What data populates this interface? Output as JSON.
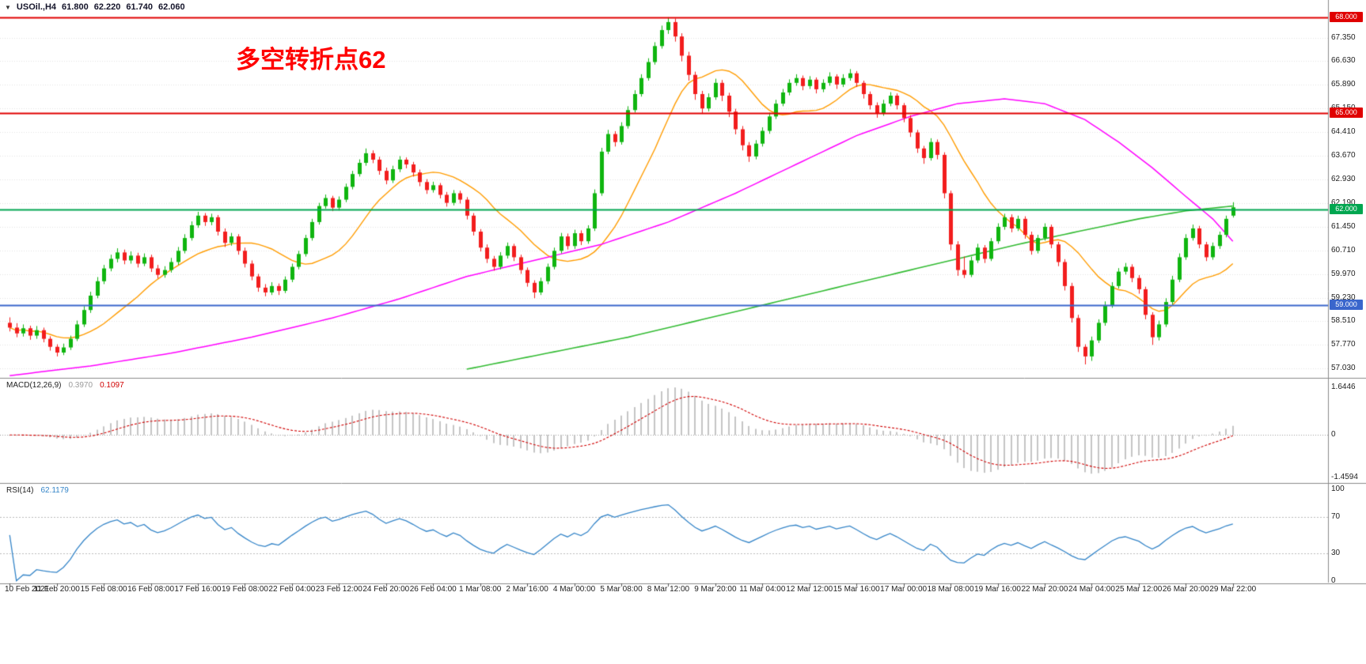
{
  "header": {
    "symbol": "USOil.,H4",
    "open": "61.800",
    "high": "62.220",
    "low": "61.740",
    "close": "62.060"
  },
  "annotation": {
    "text": "多空转折点62",
    "color": "#ff0000"
  },
  "chart_data": {
    "type": "candlestick",
    "title": "USOil H4 chart with MACD and RSI",
    "ylim": [
      56.73,
      68.54
    ],
    "price_axis_ticks": [
      "67.350",
      "66.630",
      "65.890",
      "65.150",
      "64.410",
      "63.670",
      "62.930",
      "62.190",
      "61.450",
      "60.710",
      "59.970",
      "59.230",
      "58.510",
      "57.770",
      "57.030"
    ],
    "hlines": [
      {
        "value": 68.0,
        "label": "68.000",
        "color": "#e00000"
      },
      {
        "value": 65.0,
        "label": "65.000",
        "color": "#e00000"
      },
      {
        "value": 62.0,
        "label": "62.000",
        "color": "#00a650"
      },
      {
        "value": 59.0,
        "label": "59.000",
        "color": "#3a66cc"
      }
    ],
    "candles": [
      [
        58.45,
        58.62,
        58.18,
        58.3
      ],
      [
        58.3,
        58.44,
        58.0,
        58.12
      ],
      [
        58.12,
        58.4,
        58.02,
        58.28
      ],
      [
        58.28,
        58.36,
        57.92,
        58.05
      ],
      [
        58.05,
        58.35,
        57.95,
        58.22
      ],
      [
        58.22,
        58.3,
        57.84,
        57.95
      ],
      [
        57.95,
        58.03,
        57.58,
        57.7
      ],
      [
        57.7,
        57.78,
        57.4,
        57.52
      ],
      [
        57.52,
        57.8,
        57.44,
        57.68
      ],
      [
        57.68,
        58.05,
        57.6,
        57.95
      ],
      [
        57.95,
        58.52,
        57.88,
        58.4
      ],
      [
        58.4,
        58.97,
        58.32,
        58.85
      ],
      [
        58.85,
        59.42,
        58.76,
        59.3
      ],
      [
        59.3,
        59.88,
        59.22,
        59.75
      ],
      [
        59.75,
        60.26,
        59.66,
        60.15
      ],
      [
        60.15,
        60.58,
        60.06,
        60.45
      ],
      [
        60.45,
        60.78,
        60.34,
        60.65
      ],
      [
        60.65,
        60.74,
        60.28,
        60.4
      ],
      [
        60.4,
        60.68,
        60.3,
        60.55
      ],
      [
        60.55,
        60.64,
        60.18,
        60.3
      ],
      [
        60.3,
        60.62,
        60.22,
        60.5
      ],
      [
        60.5,
        60.58,
        60.04,
        60.15
      ],
      [
        60.15,
        60.26,
        59.84,
        59.95
      ],
      [
        59.95,
        60.22,
        59.86,
        60.1
      ],
      [
        60.1,
        60.48,
        60.02,
        60.35
      ],
      [
        60.35,
        60.82,
        60.26,
        60.7
      ],
      [
        60.7,
        61.22,
        60.62,
        61.1
      ],
      [
        61.1,
        61.62,
        61.02,
        61.5
      ],
      [
        61.5,
        61.92,
        61.42,
        61.8
      ],
      [
        61.8,
        61.88,
        61.48,
        61.6
      ],
      [
        61.6,
        61.86,
        61.5,
        61.75
      ],
      [
        61.75,
        61.82,
        61.18,
        61.3
      ],
      [
        61.3,
        61.4,
        60.82,
        60.95
      ],
      [
        60.95,
        61.26,
        60.86,
        61.15
      ],
      [
        61.15,
        61.22,
        60.58,
        60.7
      ],
      [
        60.7,
        60.8,
        60.18,
        60.3
      ],
      [
        60.3,
        60.4,
        59.78,
        59.9
      ],
      [
        59.9,
        59.98,
        59.42,
        59.55
      ],
      [
        59.55,
        59.66,
        59.28,
        59.4
      ],
      [
        59.4,
        59.72,
        59.32,
        59.6
      ],
      [
        59.6,
        59.68,
        59.32,
        59.45
      ],
      [
        59.45,
        59.9,
        59.38,
        59.8
      ],
      [
        59.8,
        60.3,
        59.72,
        60.2
      ],
      [
        60.2,
        60.7,
        60.12,
        60.6
      ],
      [
        60.6,
        61.2,
        60.52,
        61.1
      ],
      [
        61.1,
        61.7,
        61.02,
        61.6
      ],
      [
        61.6,
        62.2,
        61.52,
        62.1
      ],
      [
        62.1,
        62.46,
        62.02,
        62.35
      ],
      [
        62.35,
        62.42,
        61.94,
        62.05
      ],
      [
        62.05,
        62.4,
        61.96,
        62.3
      ],
      [
        62.3,
        62.8,
        62.22,
        62.7
      ],
      [
        62.7,
        63.2,
        62.62,
        63.1
      ],
      [
        63.1,
        63.56,
        63.02,
        63.45
      ],
      [
        63.45,
        63.9,
        63.36,
        63.75
      ],
      [
        63.75,
        63.84,
        63.44,
        63.55
      ],
      [
        63.55,
        63.64,
        63.08,
        63.2
      ],
      [
        63.2,
        63.3,
        62.78,
        62.9
      ],
      [
        62.9,
        63.36,
        62.82,
        63.25
      ],
      [
        63.25,
        63.66,
        63.16,
        63.55
      ],
      [
        63.55,
        63.62,
        63.28,
        63.4
      ],
      [
        63.4,
        63.48,
        63.02,
        63.15
      ],
      [
        63.15,
        63.24,
        62.72,
        62.85
      ],
      [
        62.85,
        62.94,
        62.48,
        62.6
      ],
      [
        62.6,
        62.86,
        62.52,
        62.75
      ],
      [
        62.75,
        62.82,
        62.34,
        62.45
      ],
      [
        62.45,
        62.54,
        62.08,
        62.2
      ],
      [
        62.2,
        62.6,
        62.12,
        62.5
      ],
      [
        62.5,
        62.58,
        62.18,
        62.3
      ],
      [
        62.3,
        62.38,
        61.68,
        61.8
      ],
      [
        61.8,
        61.88,
        61.18,
        61.3
      ],
      [
        61.3,
        61.38,
        60.68,
        60.8
      ],
      [
        60.8,
        60.9,
        60.32,
        60.45
      ],
      [
        60.45,
        60.54,
        60.08,
        60.2
      ],
      [
        60.2,
        60.66,
        60.12,
        60.55
      ],
      [
        60.55,
        60.96,
        60.46,
        60.85
      ],
      [
        60.85,
        60.92,
        60.38,
        60.5
      ],
      [
        60.5,
        60.58,
        59.98,
        60.1
      ],
      [
        60.1,
        60.18,
        59.58,
        59.7
      ],
      [
        59.7,
        59.78,
        59.22,
        59.4
      ],
      [
        59.4,
        59.86,
        59.32,
        59.75
      ],
      [
        59.75,
        60.3,
        59.66,
        60.2
      ],
      [
        60.2,
        60.8,
        60.12,
        60.7
      ],
      [
        60.7,
        61.26,
        60.62,
        61.15
      ],
      [
        61.15,
        61.24,
        60.74,
        60.85
      ],
      [
        60.85,
        61.36,
        60.76,
        61.25
      ],
      [
        61.25,
        61.34,
        60.88,
        61.0
      ],
      [
        61.0,
        61.5,
        60.92,
        61.4
      ],
      [
        61.4,
        62.62,
        61.32,
        62.5
      ],
      [
        62.5,
        63.92,
        62.42,
        63.8
      ],
      [
        63.8,
        64.48,
        63.72,
        64.35
      ],
      [
        64.35,
        64.44,
        63.96,
        64.1
      ],
      [
        64.1,
        64.72,
        64.02,
        64.6
      ],
      [
        64.6,
        65.22,
        64.52,
        65.1
      ],
      [
        65.1,
        65.72,
        65.02,
        65.6
      ],
      [
        65.6,
        66.22,
        65.52,
        66.1
      ],
      [
        66.1,
        66.72,
        66.02,
        66.6
      ],
      [
        66.6,
        67.22,
        66.52,
        67.1
      ],
      [
        67.1,
        67.74,
        67.02,
        67.6
      ],
      [
        67.6,
        68.0,
        67.48,
        67.85
      ],
      [
        67.85,
        67.96,
        67.24,
        67.4
      ],
      [
        67.4,
        67.5,
        66.62,
        66.8
      ],
      [
        66.8,
        66.92,
        66.02,
        66.2
      ],
      [
        66.2,
        66.3,
        65.42,
        65.6
      ],
      [
        65.6,
        65.7,
        64.98,
        65.15
      ],
      [
        65.15,
        65.62,
        65.06,
        65.5
      ],
      [
        65.5,
        66.08,
        65.42,
        65.95
      ],
      [
        65.95,
        66.04,
        65.38,
        65.55
      ],
      [
        65.55,
        65.64,
        64.88,
        65.05
      ],
      [
        65.05,
        65.14,
        64.34,
        64.5
      ],
      [
        64.5,
        64.6,
        63.84,
        64.0
      ],
      [
        64.0,
        64.1,
        63.48,
        63.65
      ],
      [
        63.65,
        64.16,
        63.56,
        64.05
      ],
      [
        64.05,
        64.56,
        63.96,
        64.45
      ],
      [
        64.45,
        65.02,
        64.36,
        64.9
      ],
      [
        64.9,
        65.42,
        64.82,
        65.3
      ],
      [
        65.3,
        65.76,
        65.22,
        65.65
      ],
      [
        65.65,
        66.06,
        65.56,
        65.95
      ],
      [
        65.95,
        66.22,
        65.86,
        66.1
      ],
      [
        66.1,
        66.18,
        65.72,
        65.85
      ],
      [
        65.85,
        66.16,
        65.76,
        66.05
      ],
      [
        66.05,
        66.12,
        65.62,
        65.75
      ],
      [
        65.75,
        66.06,
        65.66,
        65.95
      ],
      [
        65.95,
        66.28,
        65.86,
        66.15
      ],
      [
        66.15,
        66.22,
        65.76,
        65.9
      ],
      [
        65.9,
        66.22,
        65.82,
        66.1
      ],
      [
        66.1,
        66.38,
        66.02,
        66.25
      ],
      [
        66.25,
        66.32,
        65.82,
        65.95
      ],
      [
        65.95,
        66.02,
        65.46,
        65.6
      ],
      [
        65.6,
        65.68,
        65.12,
        65.25
      ],
      [
        65.25,
        65.34,
        64.86,
        65.0
      ],
      [
        65.0,
        65.42,
        64.92,
        65.3
      ],
      [
        65.3,
        65.66,
        65.22,
        65.55
      ],
      [
        65.55,
        65.62,
        65.12,
        65.25
      ],
      [
        65.25,
        65.32,
        64.72,
        64.85
      ],
      [
        64.85,
        64.94,
        64.26,
        64.4
      ],
      [
        64.4,
        64.48,
        63.76,
        63.9
      ],
      [
        63.9,
        63.98,
        63.42,
        63.6
      ],
      [
        63.6,
        64.22,
        63.52,
        64.1
      ],
      [
        64.1,
        64.18,
        63.56,
        63.7
      ],
      [
        63.7,
        63.78,
        62.34,
        62.5
      ],
      [
        62.5,
        62.58,
        60.72,
        60.9
      ],
      [
        60.9,
        61.0,
        59.92,
        60.1
      ],
      [
        60.1,
        60.52,
        59.85,
        59.95
      ],
      [
        59.95,
        60.52,
        59.88,
        60.4
      ],
      [
        60.4,
        60.92,
        60.32,
        60.8
      ],
      [
        60.8,
        60.88,
        60.32,
        60.45
      ],
      [
        60.45,
        61.1,
        60.38,
        61.0
      ],
      [
        61.0,
        61.56,
        60.92,
        61.45
      ],
      [
        61.45,
        61.86,
        61.36,
        61.75
      ],
      [
        61.75,
        61.84,
        61.28,
        61.4
      ],
      [
        61.4,
        61.8,
        61.32,
        61.7
      ],
      [
        61.7,
        61.78,
        61.08,
        61.2
      ],
      [
        61.2,
        61.3,
        60.58,
        60.7
      ],
      [
        60.7,
        61.2,
        60.62,
        61.1
      ],
      [
        61.1,
        61.56,
        61.02,
        61.45
      ],
      [
        61.45,
        61.52,
        60.78,
        60.9
      ],
      [
        60.9,
        60.98,
        60.22,
        60.35
      ],
      [
        60.35,
        60.44,
        59.46,
        59.6
      ],
      [
        59.6,
        59.7,
        58.46,
        58.6
      ],
      [
        58.6,
        58.7,
        57.54,
        57.7
      ],
      [
        57.7,
        57.78,
        57.15,
        57.4
      ],
      [
        57.4,
        58.02,
        57.26,
        57.9
      ],
      [
        57.9,
        58.56,
        57.82,
        58.45
      ],
      [
        58.45,
        59.12,
        58.36,
        59.0
      ],
      [
        59.0,
        59.72,
        58.92,
        59.6
      ],
      [
        59.6,
        60.16,
        59.52,
        60.05
      ],
      [
        60.05,
        60.32,
        59.96,
        60.2
      ],
      [
        60.2,
        60.28,
        59.72,
        59.85
      ],
      [
        59.85,
        59.94,
        59.36,
        59.5
      ],
      [
        59.5,
        59.58,
        58.56,
        58.7
      ],
      [
        58.7,
        58.78,
        57.76,
        58.0
      ],
      [
        58.0,
        58.52,
        57.9,
        58.4
      ],
      [
        58.4,
        59.22,
        58.32,
        59.1
      ],
      [
        59.1,
        59.92,
        59.02,
        59.8
      ],
      [
        59.8,
        60.62,
        59.72,
        60.5
      ],
      [
        60.5,
        61.22,
        60.42,
        61.1
      ],
      [
        61.1,
        61.52,
        61.02,
        61.4
      ],
      [
        61.4,
        61.48,
        60.78,
        60.9
      ],
      [
        60.9,
        60.98,
        60.38,
        60.5
      ],
      [
        60.5,
        60.96,
        60.42,
        60.85
      ],
      [
        60.85,
        61.3,
        60.76,
        61.2
      ],
      [
        61.2,
        61.8,
        61.12,
        61.7
      ],
      [
        61.8,
        62.22,
        61.74,
        62.06
      ]
    ],
    "moving_averages": [
      {
        "name": "fast",
        "type": "sma",
        "period": 14,
        "color": "#ff9c00"
      },
      {
        "name": "mid",
        "color": "#ff00ff",
        "points": [
          [
            0,
            56.8
          ],
          [
            12,
            57.1
          ],
          [
            24,
            57.5
          ],
          [
            36,
            58.0
          ],
          [
            48,
            58.6
          ],
          [
            58,
            59.2
          ],
          [
            68,
            59.9
          ],
          [
            78,
            60.4
          ],
          [
            88,
            60.9
          ],
          [
            98,
            61.6
          ],
          [
            108,
            62.5
          ],
          [
            118,
            63.5
          ],
          [
            126,
            64.3
          ],
          [
            134,
            64.9
          ],
          [
            141,
            65.3
          ],
          [
            148,
            65.45
          ],
          [
            154,
            65.3
          ],
          [
            160,
            64.8
          ],
          [
            165,
            64.1
          ],
          [
            170,
            63.3
          ],
          [
            175,
            62.4
          ],
          [
            179,
            61.7
          ],
          [
            182,
            61.0
          ]
        ]
      },
      {
        "name": "slow",
        "color": "#33bb33",
        "points": [
          [
            68,
            57.0
          ],
          [
            80,
            57.5
          ],
          [
            92,
            58.0
          ],
          [
            104,
            58.6
          ],
          [
            116,
            59.2
          ],
          [
            128,
            59.8
          ],
          [
            140,
            60.4
          ],
          [
            150,
            60.9
          ],
          [
            160,
            61.35
          ],
          [
            168,
            61.7
          ],
          [
            175,
            61.95
          ],
          [
            182,
            62.1
          ]
        ]
      }
    ],
    "indicators": {
      "macd": {
        "label": "MACD(12,26,9)",
        "value_main": "0.3970",
        "value_signal": "0.1097",
        "fast": 12,
        "slow": 26,
        "signal": 9,
        "ylim": [
          -1.66,
          1.97
        ],
        "axis_ticks": [
          {
            "label": "1.6446",
            "value": 1.6446
          },
          {
            "label": "0",
            "value": 0
          },
          {
            "label": "-1.4594",
            "value": -1.4594
          }
        ],
        "hist_color": "#c4c4c4",
        "signal_color": "#d00000"
      },
      "rsi": {
        "label": "RSI(14)",
        "value": "62.1179",
        "period": 14,
        "ylim": [
          -2,
          107
        ],
        "levels": [
          70,
          30
        ],
        "axis_ticks": [
          {
            "label": "100",
            "value": 100
          },
          {
            "label": "70",
            "value": 70
          },
          {
            "label": "30",
            "value": 30
          },
          {
            "label": "0",
            "value": 0
          }
        ],
        "color": "#3585c8"
      }
    },
    "time_axis": [
      "10 Feb 2021",
      "11 Feb 20:00",
      "15 Feb 08:00",
      "16 Feb 08:00",
      "17 Feb 16:00",
      "19 Feb 08:00",
      "22 Feb 04:00",
      "23 Feb 12:00",
      "24 Feb 20:00",
      "26 Feb 04:00",
      "1 Mar 08:00",
      "2 Mar 16:00",
      "4 Mar 00:00",
      "5 Mar 08:00",
      "8 Mar 12:00",
      "9 Mar 20:00",
      "11 Mar 04:00",
      "12 Mar 12:00",
      "15 Mar 16:00",
      "17 Mar 00:00",
      "18 Mar 08:00",
      "19 Mar 16:00",
      "22 Mar 20:00",
      "24 Mar 04:00",
      "25 Mar 12:00",
      "26 Mar 20:00",
      "29 Mar 22:00"
    ],
    "colors": {
      "up": "#0fb50f",
      "down": "#f21d1d",
      "grid": "#e2e2e2",
      "axis_text": "#222222",
      "separator": "#8a8a8a"
    }
  }
}
